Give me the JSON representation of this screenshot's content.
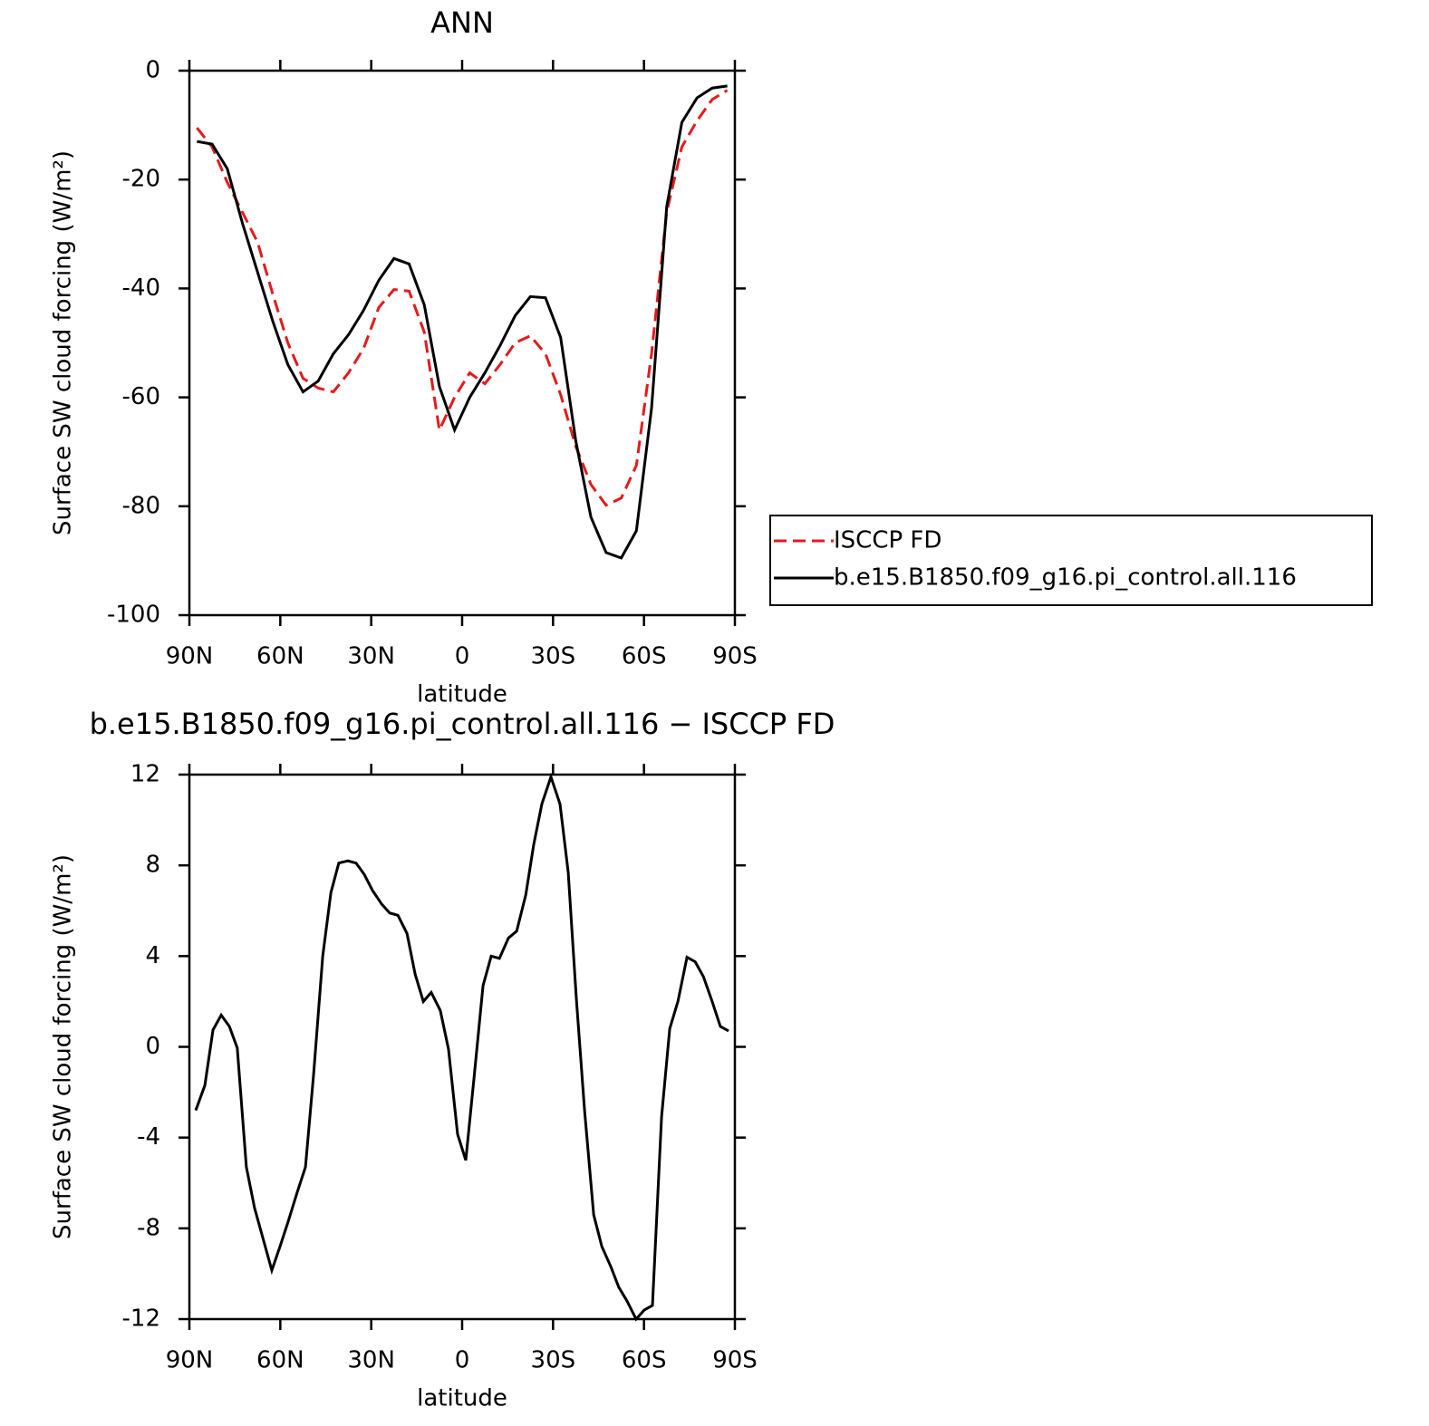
{
  "chart_data": [
    {
      "type": "line",
      "title": "ANN",
      "xlabel": "latitude",
      "ylabel": "Surface SW cloud forcing (W/m²)",
      "x": [
        87.5,
        82.5,
        77.5,
        72.5,
        67.5,
        62.5,
        57.5,
        52.5,
        47.5,
        42.5,
        37.5,
        32.5,
        27.5,
        22.5,
        17.5,
        12.5,
        7.5,
        2.5,
        -2.5,
        -7.5,
        -12.5,
        -17.5,
        -22.5,
        -27.5,
        -32.5,
        -37.5,
        -42.5,
        -47.5,
        -52.5,
        -57.5,
        -62.5,
        -67.5,
        -72.5,
        -77.5,
        -82.5,
        -87.5
      ],
      "series": [
        {
          "name": "ISCCP FD",
          "color": "#e41a1c",
          "dashed": true,
          "values": [
            -10.5,
            -14,
            -20.5,
            -26,
            -31.5,
            -41,
            -50,
            -56.5,
            -58.3,
            -59,
            -55.5,
            -51,
            -43.5,
            -40.2,
            -40.5,
            -48,
            -66,
            -60,
            -55.5,
            -57.5,
            -54,
            -50,
            -48.7,
            -52,
            -59.5,
            -69,
            -76,
            -79.8,
            -78.5,
            -72.5,
            -52,
            -26,
            -14,
            -9.2,
            -5.3,
            -3.6
          ]
        },
        {
          "name": "b.e15.B1850.f09_g16.pi_control.all.116",
          "color": "#000000",
          "dashed": false,
          "values": [
            -13,
            -13.5,
            -18,
            -28,
            -37,
            -46,
            -54,
            -59,
            -57,
            -52,
            -48.5,
            -44,
            -38.5,
            -34.5,
            -35.5,
            -43,
            -58,
            -66,
            -60,
            -55.5,
            -50.5,
            -45,
            -41.5,
            -41.7,
            -49,
            -68,
            -82,
            -88.5,
            -89.5,
            -84.5,
            -62,
            -25,
            -9.5,
            -5,
            -3.2,
            -2.8
          ]
        }
      ],
      "xlim": [
        90,
        -90
      ],
      "ylim": [
        -100,
        0
      ],
      "xticks": [
        {
          "value": 90,
          "label": "90N"
        },
        {
          "value": 60,
          "label": "60N"
        },
        {
          "value": 30,
          "label": "30N"
        },
        0,
        {
          "value": -30,
          "label": "30S"
        },
        {
          "value": -60,
          "label": "60S"
        },
        {
          "value": -90,
          "label": "90S"
        }
      ],
      "yticks": [
        -100,
        -80,
        -60,
        -40,
        -20,
        0
      ],
      "legend": "outside right"
    },
    {
      "type": "line",
      "title": "b.e15.B1850.f09_g16.pi_control.all.116 − ISCCP FD",
      "xlabel": "latitude",
      "ylabel": "Surface SW cloud forcing (W/m²)",
      "x": [
        87.9,
        84.9,
        82.2,
        79.5,
        76.8,
        74.2,
        71.2,
        68.5,
        65.8,
        62.8,
        60.1,
        57.4,
        54.4,
        51.7,
        49,
        46,
        43.3,
        40.7,
        37.7,
        35,
        32.3,
        29.6,
        26.6,
        23.9,
        21.2,
        18.2,
        15.5,
        12.8,
        10.2,
        7.2,
        4.5,
        1.5,
        -1.2,
        -3.9,
        -6.9,
        -9.6,
        -12.3,
        -15.3,
        -18,
        -21,
        -23.6,
        -26.3,
        -29.3,
        -32.3,
        -35,
        -37.7,
        -40.4,
        -43.4,
        -46.1,
        -49.1,
        -51.7,
        -54.4,
        -57.4,
        -60.1,
        -62.8,
        -65.8,
        -68.5,
        -71.2,
        -74.2,
        -76.9,
        -79.6,
        -82.5,
        -85.2,
        -87.9
      ],
      "series": [
        {
          "color": "#000000",
          "dashed": false,
          "values": [
            -2.8,
            -1.7,
            0.75,
            1.4,
            0.9,
            -0.05,
            -5.3,
            -7.1,
            -8.4,
            -9.85,
            -8.8,
            -7.7,
            -6.4,
            -5.3,
            -1.2,
            4.0,
            6.8,
            8.1,
            8.2,
            8.1,
            7.6,
            6.9,
            6.3,
            5.9,
            5.8,
            5.0,
            3.2,
            2.0,
            2.4,
            1.6,
            -0.1,
            -3.85,
            -5.0,
            -1.4,
            2.7,
            4.0,
            3.9,
            4.8,
            5.1,
            6.7,
            8.9,
            10.7,
            11.9,
            10.7,
            7.7,
            2.1,
            -2.8,
            -7.4,
            -8.8,
            -9.7,
            -10.6,
            -11.2,
            -12,
            -11.6,
            -11.4,
            -3.1,
            0.8,
            2.0,
            3.95,
            3.75,
            3.1,
            2.0,
            0.9,
            0.7
          ]
        }
      ],
      "xlim": [
        90,
        -90
      ],
      "ylim": [
        -12,
        12
      ],
      "xticks": [
        {
          "value": 90,
          "label": "90N"
        },
        {
          "value": 60,
          "label": "60N"
        },
        {
          "value": 30,
          "label": "30N"
        },
        0,
        {
          "value": -30,
          "label": "30S"
        },
        {
          "value": -60,
          "label": "60S"
        },
        {
          "value": -90,
          "label": "90S"
        }
      ],
      "yticks": [
        -12,
        -8,
        -4,
        0,
        4,
        8,
        12
      ]
    }
  ]
}
